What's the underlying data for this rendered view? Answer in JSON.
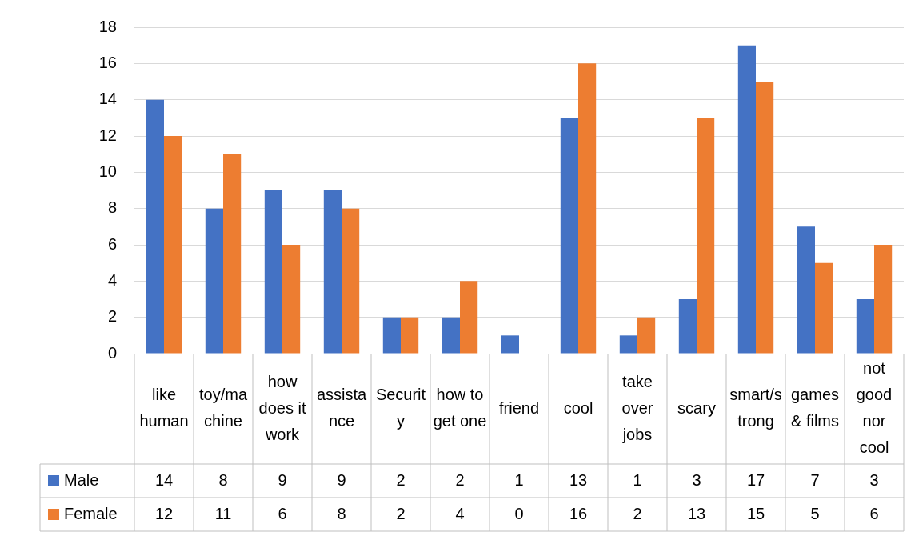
{
  "chart_data": {
    "type": "bar",
    "categories": [
      "like human",
      "toy/machine",
      "how does it work",
      "assistance",
      "Security",
      "how to get one",
      "friend",
      "cool",
      "take over jobs",
      "scary",
      "smart/strong",
      "games & films",
      "not good nor cool"
    ],
    "series": [
      {
        "name": "Male",
        "color": "#4472c4",
        "values": [
          14,
          8,
          9,
          9,
          2,
          2,
          1,
          13,
          1,
          3,
          17,
          7,
          3
        ]
      },
      {
        "name": "Female",
        "color": "#ed7d31",
        "values": [
          12,
          11,
          6,
          8,
          2,
          4,
          0,
          16,
          2,
          13,
          15,
          5,
          6
        ]
      }
    ],
    "ylim": [
      0,
      18
    ],
    "yticks": [
      0,
      2,
      4,
      6,
      8,
      10,
      12,
      14,
      16,
      18
    ],
    "grid": "y",
    "legend": "bottom",
    "data_labels": true
  }
}
